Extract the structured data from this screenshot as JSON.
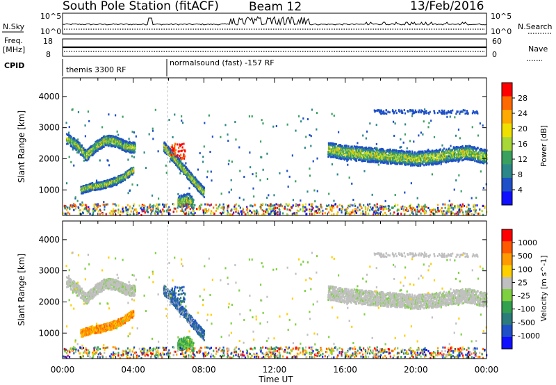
{
  "header": {
    "title": "South Pole Station (fitACF)",
    "beam": "Beam 12",
    "date": "13/Feb/2016"
  },
  "noise_panel": {
    "left_label": "N.Sky",
    "left_ticks": [
      "10^5",
      "10^0"
    ],
    "right_ticks": [
      "10^5",
      "10^0"
    ],
    "right_label": "N.Search"
  },
  "freq_panel": {
    "left_label_1": "Freq.",
    "left_label_2": "[MHz]",
    "left_ticks": [
      "18",
      "8"
    ],
    "right_ticks": [
      "60",
      "0"
    ],
    "right_label": "Nave"
  },
  "cpid": {
    "label": "CPID",
    "segment_1": "themis 3300 RF",
    "segment_2": "normalsound (fast) -157 RF"
  },
  "chart_data": [
    {
      "type": "heatmap",
      "name": "Power",
      "ylabel": "Slant Range [km]",
      "ylim": [
        180,
        4600
      ],
      "yticks": [
        1000,
        2000,
        3000,
        4000
      ],
      "xlim": [
        0,
        24
      ],
      "xticks": [
        "00:00",
        "04:00",
        "08:00",
        "12:00",
        "16:00",
        "20:00",
        "00:00"
      ],
      "colorbar": {
        "label": "Power [dB]",
        "tick_labels": [
          "28",
          "24",
          "20",
          "16",
          "12",
          "8",
          "4"
        ],
        "range": [
          0,
          30
        ],
        "colors": [
          "#ff0000",
          "#ff6a00",
          "#ffaa00",
          "#f0e000",
          "#a8d838",
          "#3aa060",
          "#2c8888",
          "#1f50c8",
          "#1010ff"
        ]
      },
      "echo_bands": [
        {
          "t0": 0.2,
          "t1": 4.1,
          "r": [
            2650,
            2450,
            2100,
            2400,
            2600,
            2550,
            2400,
            2350
          ],
          "w": 170
        },
        {
          "t0": 1.0,
          "t1": 4.0,
          "r": [
            1000,
            1100,
            1150,
            1250,
            1400,
            1650
          ],
          "w": 120
        },
        {
          "t0": 5.7,
          "t1": 8.0,
          "r": [
            2400,
            2100,
            1800,
            1500,
            1200,
            900
          ],
          "w": 160
        },
        {
          "t0": 6.5,
          "t1": 7.4,
          "r": [
            600,
            650,
            700,
            550
          ],
          "w": 200
        },
        {
          "t0": 15.0,
          "t1": 24.0,
          "r": [
            2300,
            2200,
            2150,
            2100,
            2050,
            2000,
            2050,
            2150,
            2200,
            2050
          ],
          "w": 230
        }
      ],
      "noise_band": [
        180,
        500
      ]
    },
    {
      "type": "heatmap",
      "name": "Velocity",
      "ylabel": "Slant Range [km]",
      "ylim": [
        180,
        4600
      ],
      "yticks": [
        1000,
        2000,
        3000,
        4000
      ],
      "xlim": [
        0,
        24
      ],
      "xlabel": "Time UT",
      "xticks": [
        "00:00",
        "04:00",
        "08:00",
        "12:00",
        "16:00",
        "20:00",
        "00:00"
      ],
      "colorbar": {
        "label": "Velocity [m s^-1]",
        "tick_labels": [
          "1000",
          "500",
          "100",
          "25",
          "-25",
          "-100",
          "-500",
          "-1000"
        ],
        "range": [
          -1200,
          1200
        ],
        "colors": [
          "#ff0000",
          "#ff5a00",
          "#ff9a00",
          "#ffd000",
          "#c0c0c0",
          "#7ed040",
          "#33a050",
          "#2c7c7c",
          "#1f50c8",
          "#1010ff"
        ]
      }
    }
  ]
}
